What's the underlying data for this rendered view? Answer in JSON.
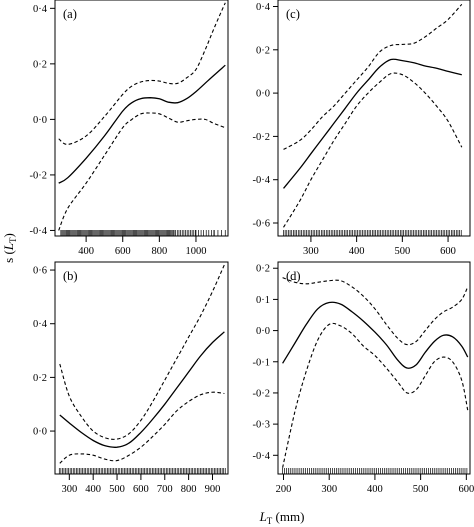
{
  "axis_titles": {
    "y_main": "s",
    "y_sym": "L",
    "y_sub": "T",
    "x_sym": "L",
    "x_sub": "T",
    "x_unit": "(mm)"
  },
  "chart_data": [
    {
      "type": "line",
      "panel_label": "(a)",
      "xlabel": "",
      "ylabel": "",
      "xlim": [
        230,
        1175
      ],
      "ylim": [
        -0.42,
        0.43
      ],
      "xticks": [
        400,
        600,
        800,
        1000
      ],
      "xtick_labels": [
        "400",
        "600",
        "800",
        "1000"
      ],
      "yticks": [
        -0.4,
        -0.2,
        0.0,
        0.2,
        0.4
      ],
      "ytick_labels": [
        "-0·4",
        "-0·2",
        "0·0",
        "0·2",
        "0·4"
      ],
      "x": [
        250,
        300,
        400,
        500,
        600,
        650,
        700,
        750,
        800,
        850,
        900,
        950,
        1000,
        1050,
        1100,
        1160
      ],
      "series": [
        {
          "role": "fit",
          "style": "solid",
          "values": [
            -0.23,
            -0.21,
            -0.14,
            -0.06,
            0.03,
            0.06,
            0.075,
            0.078,
            0.074,
            0.062,
            0.06,
            0.075,
            0.1,
            0.13,
            0.16,
            0.195
          ]
        },
        {
          "role": "upper",
          "style": "dashed",
          "values": [
            -0.07,
            -0.09,
            -0.06,
            0.01,
            0.09,
            0.12,
            0.135,
            0.14,
            0.138,
            0.13,
            0.13,
            0.15,
            0.18,
            0.25,
            0.33,
            0.42
          ]
        },
        {
          "role": "lower",
          "style": "dashed",
          "values": [
            -0.4,
            -0.32,
            -0.23,
            -0.13,
            -0.03,
            0.0,
            0.02,
            0.023,
            0.02,
            0.005,
            -0.01,
            -0.005,
            0.0,
            0.0,
            -0.015,
            -0.03
          ]
        }
      ],
      "rug": {
        "from": 262,
        "to": 1160,
        "dense": [
          [
            262,
            880,
            6
          ],
          [
            880,
            1000,
            9
          ],
          [
            1000,
            1100,
            14
          ],
          [
            1100,
            1160,
            20
          ]
        ]
      }
    },
    {
      "type": "line",
      "panel_label": "(b)",
      "xlabel": "",
      "ylabel": "",
      "xlim": [
        240,
        965
      ],
      "ylim": [
        -0.16,
        0.63
      ],
      "xticks": [
        300,
        400,
        500,
        600,
        700,
        800,
        900
      ],
      "xtick_labels": [
        "300",
        "400",
        "500",
        "600",
        "700",
        "800",
        "900"
      ],
      "yticks": [
        0.0,
        0.2,
        0.4,
        0.6
      ],
      "ytick_labels": [
        "0·0",
        "0·2",
        "0·4",
        "0·6"
      ],
      "x": [
        260,
        300,
        350,
        400,
        450,
        500,
        550,
        600,
        650,
        700,
        750,
        800,
        850,
        900,
        950
      ],
      "series": [
        {
          "role": "fit",
          "style": "solid",
          "values": [
            0.06,
            0.03,
            -0.005,
            -0.035,
            -0.055,
            -0.06,
            -0.045,
            -0.005,
            0.045,
            0.1,
            0.16,
            0.22,
            0.28,
            0.33,
            0.37
          ]
        },
        {
          "role": "upper",
          "style": "dashed",
          "values": [
            0.25,
            0.13,
            0.055,
            0.0,
            -0.025,
            -0.03,
            -0.01,
            0.04,
            0.11,
            0.19,
            0.27,
            0.35,
            0.43,
            0.52,
            0.62
          ]
        },
        {
          "role": "lower",
          "style": "dashed",
          "values": [
            -0.12,
            -0.09,
            -0.085,
            -0.09,
            -0.105,
            -0.11,
            -0.09,
            -0.06,
            -0.02,
            0.025,
            0.075,
            0.11,
            0.135,
            0.145,
            0.14
          ]
        }
      ],
      "rug": {
        "from": 258,
        "to": 955,
        "dense": [
          [
            258,
            955,
            6.5
          ]
        ]
      }
    },
    {
      "type": "line",
      "panel_label": "(c)",
      "xlabel": "",
      "ylabel": "",
      "xlim": [
        228,
        648
      ],
      "ylim": [
        -0.66,
        0.43
      ],
      "xticks": [
        300,
        400,
        500,
        600
      ],
      "xtick_labels": [
        "300",
        "400",
        "500",
        "600"
      ],
      "yticks": [
        -0.6,
        -0.4,
        -0.2,
        0.0,
        0.2,
        0.4
      ],
      "ytick_labels": [
        "-0·6",
        "-0·4",
        "-0·2",
        "0·0",
        "0·2",
        "0·4"
      ],
      "x": [
        240,
        275,
        300,
        325,
        350,
        375,
        400,
        425,
        450,
        475,
        500,
        525,
        550,
        575,
        600,
        630
      ],
      "series": [
        {
          "role": "fit",
          "style": "solid",
          "values": [
            -0.44,
            -0.35,
            -0.28,
            -0.21,
            -0.14,
            -0.07,
            0.0,
            0.06,
            0.12,
            0.155,
            0.15,
            0.14,
            0.125,
            0.115,
            0.1,
            0.085
          ]
        },
        {
          "role": "upper",
          "style": "dashed",
          "values": [
            -0.26,
            -0.22,
            -0.17,
            -0.11,
            -0.06,
            0.0,
            0.06,
            0.12,
            0.19,
            0.22,
            0.225,
            0.23,
            0.26,
            0.3,
            0.34,
            0.41
          ]
        },
        {
          "role": "lower",
          "style": "dashed",
          "values": [
            -0.62,
            -0.5,
            -0.4,
            -0.31,
            -0.22,
            -0.14,
            -0.06,
            0.0,
            0.05,
            0.09,
            0.085,
            0.05,
            0.0,
            -0.06,
            -0.13,
            -0.25
          ]
        }
      ],
      "rug": {
        "from": 240,
        "to": 632,
        "dense": [
          [
            240,
            632,
            3.6
          ]
        ]
      }
    },
    {
      "type": "line",
      "panel_label": "(d)",
      "xlabel": "",
      "ylabel": "",
      "xlim": [
        188,
        608
      ],
      "ylim": [
        -0.46,
        0.22
      ],
      "xticks": [
        200,
        300,
        400,
        500,
        600
      ],
      "xtick_labels": [
        "200",
        "300",
        "400",
        "500",
        "600"
      ],
      "yticks": [
        -0.4,
        -0.3,
        -0.2,
        -0.1,
        0.0,
        0.1,
        0.2
      ],
      "ytick_labels": [
        "-0·4",
        "-0·3",
        "-0·2",
        "-0·1",
        "0·0",
        "0·1",
        "0·2"
      ],
      "x": [
        198,
        225,
        250,
        275,
        300,
        325,
        350,
        375,
        400,
        425,
        450,
        470,
        490,
        510,
        530,
        550,
        570,
        590,
        603
      ],
      "series": [
        {
          "role": "fit",
          "style": "solid",
          "values": [
            -0.105,
            -0.04,
            0.02,
            0.07,
            0.09,
            0.085,
            0.06,
            0.03,
            -0.005,
            -0.045,
            -0.095,
            -0.12,
            -0.11,
            -0.07,
            -0.035,
            -0.015,
            -0.02,
            -0.05,
            -0.085
          ]
        },
        {
          "role": "upper",
          "style": "dashed",
          "values": [
            0.17,
            0.155,
            0.15,
            0.155,
            0.16,
            0.16,
            0.14,
            0.11,
            0.07,
            0.02,
            -0.025,
            -0.045,
            -0.035,
            0.0,
            0.035,
            0.06,
            0.075,
            0.1,
            0.14
          ]
        },
        {
          "role": "lower",
          "style": "dashed",
          "values": [
            -0.44,
            -0.26,
            -0.13,
            -0.03,
            0.02,
            0.015,
            -0.01,
            -0.05,
            -0.08,
            -0.12,
            -0.165,
            -0.2,
            -0.19,
            -0.145,
            -0.1,
            -0.085,
            -0.1,
            -0.16,
            -0.255
          ]
        }
      ],
      "rug": {
        "from": 198,
        "to": 603,
        "dense": [
          [
            198,
            603,
            4.2
          ]
        ]
      }
    }
  ]
}
